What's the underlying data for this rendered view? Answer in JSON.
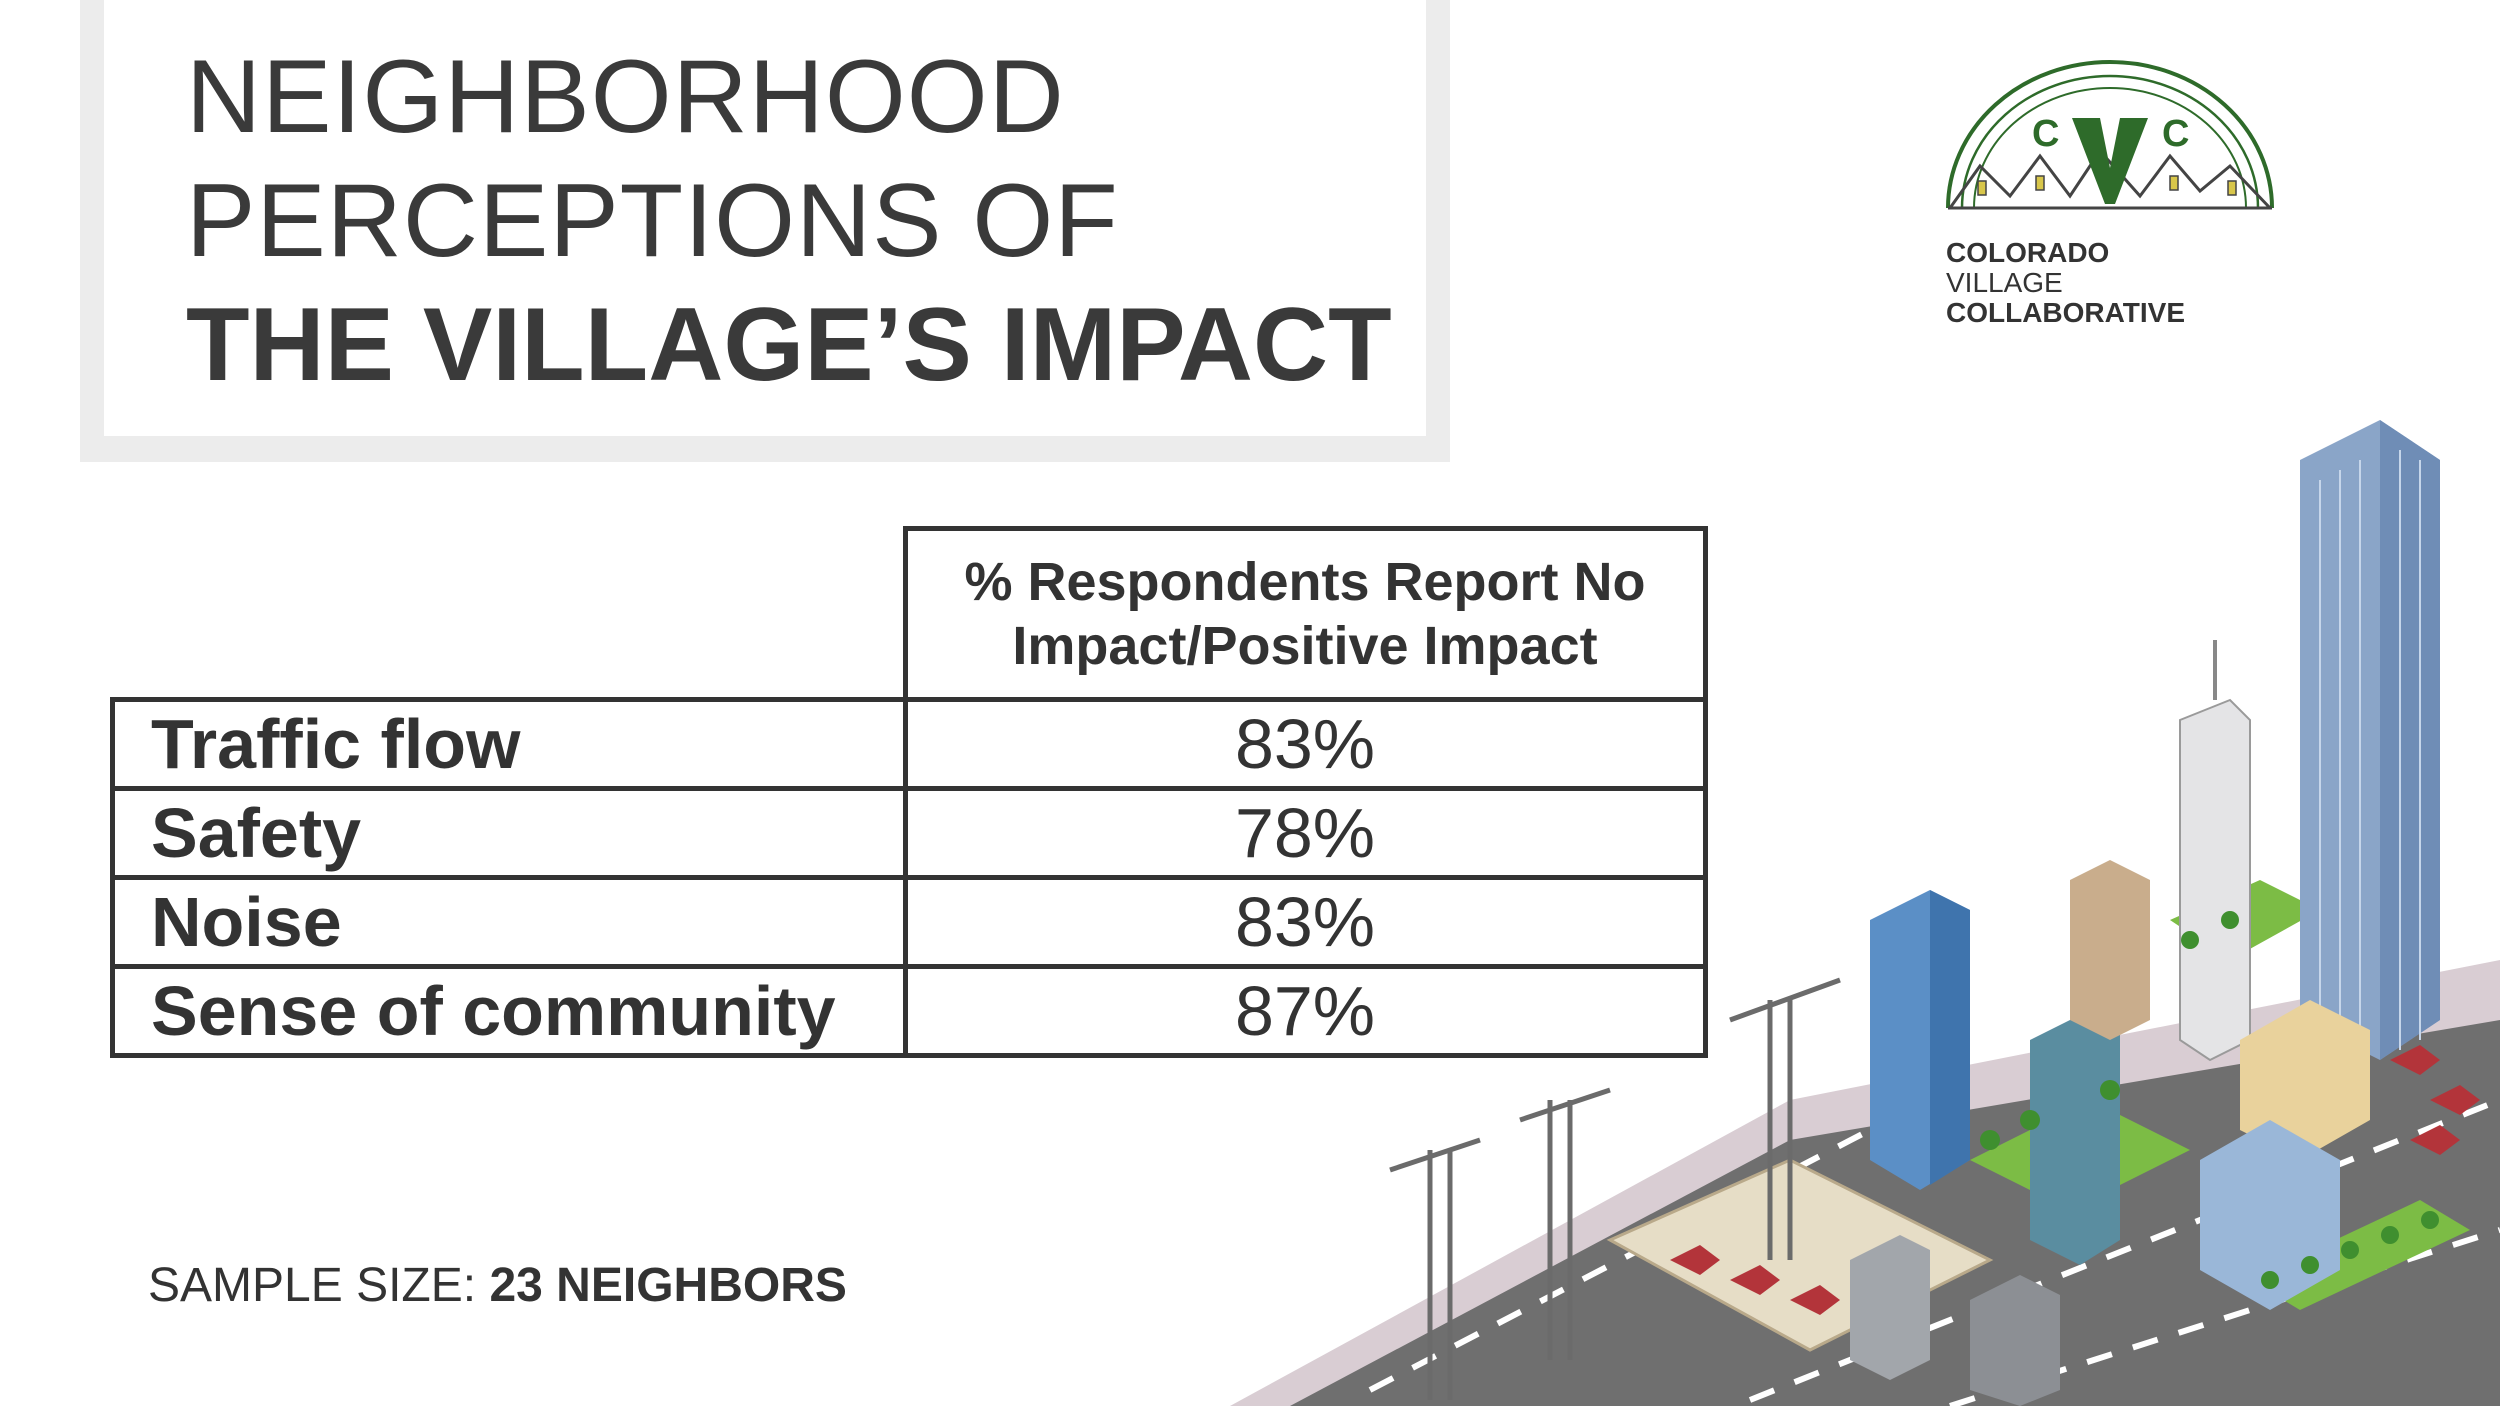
{
  "title": {
    "line1": "NEIGHBORHOOD",
    "line2": "PERCEPTIONS OF",
    "line3": "THE VILLAGE’S IMPACT"
  },
  "logo": {
    "letters": [
      "C",
      "V",
      "C"
    ],
    "line1": "COLORADO",
    "line2": "VILLAGE",
    "line3": "COLLABORATIVE",
    "color_green": "#2e6b2a"
  },
  "table": {
    "column_header": "% Respondents Report No Impact/Positive Impact",
    "rows": [
      {
        "label": "Traffic flow",
        "value": "83%"
      },
      {
        "label": "Safety",
        "value": "78%"
      },
      {
        "label": "Noise",
        "value": "83%"
      },
      {
        "label": "Sense of community",
        "value": "87%"
      }
    ]
  },
  "sample": {
    "label": "SAMPLE SIZE:",
    "value": "23 NEIGHBORS"
  },
  "illustration": "isometric-city-illustration"
}
